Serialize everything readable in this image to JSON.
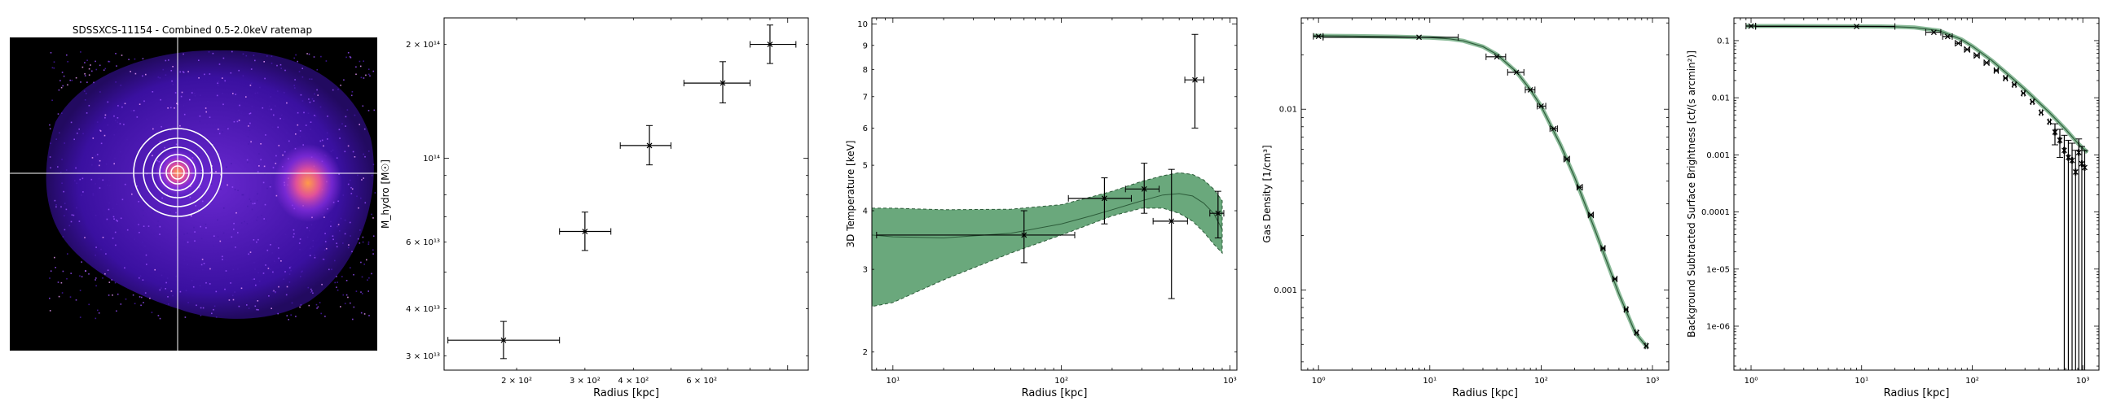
{
  "image_panel": {
    "title": "SDSSXCS-11154 - Combined 0.5-2.0keV ratemap",
    "colors": {
      "background": "#000000",
      "emission_low": "#3a10a0",
      "emission_mid": "#8a2fe0",
      "emission_high": "#ff9a4a",
      "crosshair": "#ffffff"
    }
  },
  "chart_data": [
    {
      "type": "scatter",
      "title": "",
      "xlabel": "Radius [kpc]",
      "ylabel": "M_hydro [M☉]",
      "xscale": "log",
      "yscale": "log",
      "xlim": [
        130,
        1130
      ],
      "ylim": [
        27500000000000.0,
        235000000000000.0
      ],
      "xticks": [
        {
          "v": 200,
          "label": "2 × 10²"
        },
        {
          "v": 300,
          "label": "3 × 10²"
        },
        {
          "v": 400,
          "label": "4 × 10²"
        },
        {
          "v": 600,
          "label": "6 × 10²"
        }
      ],
      "yticks": [
        {
          "v": 30000000000000.0,
          "label": "3 × 10¹³"
        },
        {
          "v": 40000000000000.0,
          "label": "4 × 10¹³"
        },
        {
          "v": 60000000000000.0,
          "label": "6 × 10¹³"
        },
        {
          "v": 100000000000000.0,
          "label": "10¹⁴"
        },
        {
          "v": 200000000000000.0,
          "label": "2 × 10¹⁴"
        }
      ],
      "points": [
        {
          "x": 185,
          "y": 33000000000000.0,
          "xlo": 133,
          "xhi": 258,
          "ylo": 29500000000000.0,
          "yhi": 37000000000000.0
        },
        {
          "x": 300,
          "y": 64000000000000.0,
          "xlo": 258,
          "xhi": 350,
          "ylo": 57000000000000.0,
          "yhi": 72000000000000.0
        },
        {
          "x": 440,
          "y": 108000000000000.0,
          "xlo": 370,
          "xhi": 500,
          "ylo": 96000000000000.0,
          "yhi": 122000000000000.0
        },
        {
          "x": 680,
          "y": 158000000000000.0,
          "xlo": 540,
          "xhi": 800,
          "ylo": 140000000000000.0,
          "yhi": 180000000000000.0
        },
        {
          "x": 900,
          "y": 200000000000000.0,
          "xlo": 800,
          "xhi": 1050,
          "ylo": 178000000000000.0,
          "yhi": 225000000000000.0
        }
      ],
      "colors": {
        "points": "#000000"
      }
    },
    {
      "type": "line",
      "title": "",
      "xlabel": "Radius [kpc]",
      "ylabel": "3D Temperature [keV]",
      "xscale": "log",
      "yscale": "log",
      "xlim": [
        7.5,
        1100
      ],
      "ylim": [
        1.83,
        10.3
      ],
      "xticks": [
        {
          "v": 10,
          "label": "10¹"
        },
        {
          "v": 100,
          "label": "10²"
        },
        {
          "v": 1000,
          "label": "10³"
        }
      ],
      "yticks": [
        {
          "v": 2,
          "label": "2"
        },
        {
          "v": 3,
          "label": "3"
        },
        {
          "v": 4,
          "label": "4"
        },
        {
          "v": 5,
          "label": "5"
        },
        {
          "v": 6,
          "label": "6"
        },
        {
          "v": 7,
          "label": "7"
        },
        {
          "v": 8,
          "label": "8"
        },
        {
          "v": 9,
          "label": "9"
        },
        {
          "v": 10,
          "label": "10"
        }
      ],
      "model": {
        "x": [
          7.5,
          10,
          20,
          50,
          100,
          150,
          200,
          300,
          400,
          500,
          600,
          700,
          800,
          900
        ],
        "median": [
          3.55,
          3.52,
          3.5,
          3.58,
          3.75,
          3.9,
          4.02,
          4.2,
          4.32,
          4.35,
          4.3,
          4.15,
          3.95,
          3.65
        ],
        "lower": [
          2.5,
          2.55,
          2.85,
          3.25,
          3.55,
          3.75,
          3.9,
          4.05,
          4.05,
          3.95,
          3.8,
          3.6,
          3.4,
          3.25
        ],
        "upper": [
          4.05,
          4.05,
          4.02,
          4.03,
          4.12,
          4.28,
          4.4,
          4.62,
          4.75,
          4.82,
          4.78,
          4.65,
          4.45,
          4.2
        ]
      },
      "points": [
        {
          "x": 60,
          "y": 3.55,
          "xlo": 8,
          "xhi": 120,
          "ylo": 3.1,
          "yhi": 4.0
        },
        {
          "x": 180,
          "y": 4.25,
          "xlo": 110,
          "xhi": 260,
          "ylo": 3.75,
          "yhi": 4.7
        },
        {
          "x": 310,
          "y": 4.45,
          "xlo": 240,
          "xhi": 380,
          "ylo": 3.95,
          "yhi": 5.05
        },
        {
          "x": 450,
          "y": 3.8,
          "xlo": 350,
          "xhi": 560,
          "ylo": 2.6,
          "yhi": 4.9
        },
        {
          "x": 620,
          "y": 7.6,
          "xlo": 540,
          "xhi": 700,
          "ylo": 6.0,
          "yhi": 9.5
        },
        {
          "x": 850,
          "y": 3.95,
          "xlo": 760,
          "xhi": 920,
          "ylo": 3.5,
          "yhi": 4.4
        }
      ],
      "colors": {
        "band": "#5a9e6e",
        "model": "#2d5c3a",
        "points": "#000000"
      }
    },
    {
      "type": "line",
      "title": "",
      "xlabel": "Radius [kpc]",
      "ylabel": "Gas Density [1/cm³]",
      "xscale": "log",
      "yscale": "log",
      "xlim": [
        0.7,
        1400
      ],
      "ylim": [
        0.00036,
        0.032
      ],
      "xticks": [
        {
          "v": 1,
          "label": "10⁰"
        },
        {
          "v": 10,
          "label": "10¹"
        },
        {
          "v": 100,
          "label": "10²"
        },
        {
          "v": 1000,
          "label": "10³"
        }
      ],
      "yticks": [
        {
          "v": 0.001,
          "label": "0.001"
        },
        {
          "v": 0.01,
          "label": "0.01"
        }
      ],
      "model": {
        "x": [
          0.9,
          2,
          5,
          10,
          15,
          20,
          30,
          40,
          60,
          80,
          100,
          150,
          200,
          300,
          500,
          700,
          900
        ],
        "y": [
          0.0255,
          0.0254,
          0.0252,
          0.0249,
          0.0245,
          0.0239,
          0.0222,
          0.0201,
          0.0161,
          0.0128,
          0.0104,
          0.0063,
          0.0042,
          0.0022,
          0.00095,
          0.00058,
          0.00048
        ]
      },
      "points": [
        {
          "x": 1.0,
          "y": 0.0253,
          "xlo": 0.9,
          "xhi": 1.1
        },
        {
          "x": 8,
          "y": 0.025,
          "xlo": 1.1,
          "xhi": 18
        },
        {
          "x": 40,
          "y": 0.0195,
          "xlo": 32,
          "xhi": 48
        },
        {
          "x": 60,
          "y": 0.016,
          "xlo": 50,
          "xhi": 70
        },
        {
          "x": 80,
          "y": 0.0128,
          "xlo": 72,
          "xhi": 88
        },
        {
          "x": 100,
          "y": 0.0104,
          "xlo": 92,
          "xhi": 110
        },
        {
          "x": 130,
          "y": 0.0078,
          "xlo": 120,
          "xhi": 140
        },
        {
          "x": 170,
          "y": 0.0053,
          "xlo": 160,
          "xhi": 180
        },
        {
          "x": 220,
          "y": 0.0037,
          "xlo": 210,
          "xhi": 235
        },
        {
          "x": 280,
          "y": 0.0026,
          "xlo": 265,
          "xhi": 295
        },
        {
          "x": 360,
          "y": 0.0017,
          "xlo": 345,
          "xhi": 375
        },
        {
          "x": 460,
          "y": 0.00115,
          "xlo": 440,
          "xhi": 480
        },
        {
          "x": 580,
          "y": 0.00078,
          "xlo": 560,
          "xhi": 600
        },
        {
          "x": 720,
          "y": 0.00058,
          "xlo": 700,
          "xhi": 740
        },
        {
          "x": 880,
          "y": 0.00049,
          "xlo": 860,
          "xhi": 900
        }
      ],
      "colors": {
        "band": "#5a9e6e",
        "model": "#2d5c3a",
        "points": "#000000"
      }
    },
    {
      "type": "line",
      "title": "",
      "xlabel": "Radius [kpc]",
      "ylabel": "Background Subtracted Surface Brightness [ct/(s arcmin²)]",
      "xscale": "log",
      "yscale": "log",
      "xlim": [
        0.7,
        1400
      ],
      "ylim": [
        1.7e-07,
        0.25
      ],
      "xticks": [
        {
          "v": 1,
          "label": "10⁰"
        },
        {
          "v": 10,
          "label": "10¹"
        },
        {
          "v": 100,
          "label": "10²"
        },
        {
          "v": 1000,
          "label": "10³"
        }
      ],
      "yticks": [
        {
          "v": 1e-06,
          "label": "1e-06"
        },
        {
          "v": 1e-05,
          "label": "1e-05"
        },
        {
          "v": 0.0001,
          "label": "0.0001"
        },
        {
          "v": 0.001,
          "label": "0.001"
        },
        {
          "v": 0.01,
          "label": "0.01"
        },
        {
          "v": 0.1,
          "label": "0.1"
        }
      ],
      "model": {
        "x": [
          0.9,
          2,
          5,
          10,
          15,
          20,
          30,
          50,
          80,
          100,
          150,
          200,
          300,
          500,
          700,
          900,
          1100
        ],
        "y": [
          0.18,
          0.18,
          0.179,
          0.178,
          0.177,
          0.175,
          0.17,
          0.15,
          0.105,
          0.08,
          0.045,
          0.028,
          0.014,
          0.0055,
          0.0028,
          0.0016,
          0.0011
        ]
      },
      "points": [
        {
          "x": 1.0,
          "y": 0.18,
          "xlo": 0.9,
          "xhi": 1.1
        },
        {
          "x": 9,
          "y": 0.177,
          "xlo": 1.1,
          "xhi": 20
        },
        {
          "x": 45,
          "y": 0.14,
          "xlo": 38,
          "xhi": 52
        },
        {
          "x": 60,
          "y": 0.118,
          "xlo": 54,
          "xhi": 66
        },
        {
          "x": 75,
          "y": 0.09,
          "xlo": 70,
          "xhi": 80
        },
        {
          "x": 90,
          "y": 0.07,
          "xlo": 85,
          "xhi": 95
        },
        {
          "x": 110,
          "y": 0.055,
          "xlo": 104,
          "xhi": 116
        },
        {
          "x": 135,
          "y": 0.041,
          "xlo": 128,
          "xhi": 142
        },
        {
          "x": 165,
          "y": 0.03,
          "xlo": 158,
          "xhi": 172
        },
        {
          "x": 200,
          "y": 0.022,
          "xlo": 193,
          "xhi": 207
        },
        {
          "x": 240,
          "y": 0.017,
          "xlo": 232,
          "xhi": 248
        },
        {
          "x": 290,
          "y": 0.012,
          "xlo": 282,
          "xhi": 298
        },
        {
          "x": 350,
          "y": 0.0085,
          "xlo": 340,
          "xhi": 360
        },
        {
          "x": 420,
          "y": 0.0055,
          "xlo": 410,
          "xhi": 430
        },
        {
          "x": 500,
          "y": 0.0038,
          "xlo": 490,
          "xhi": 510
        },
        {
          "x": 560,
          "y": 0.0025,
          "xlo": 550,
          "xhi": 570,
          "ylo": 0.0015,
          "yhi": 0.0035
        },
        {
          "x": 620,
          "y": 0.0018,
          "xlo": 610,
          "xhi": 630,
          "ylo": 0.0009,
          "yhi": 0.0028
        },
        {
          "x": 680,
          "y": 0.0012,
          "xlo": 670,
          "xhi": 690,
          "ylo": 1e-07,
          "yhi": 0.0022
        },
        {
          "x": 740,
          "y": 0.0009,
          "xlo": 730,
          "xhi": 750,
          "ylo": 1e-07,
          "yhi": 0.0018
        },
        {
          "x": 800,
          "y": 0.0008,
          "xlo": 790,
          "xhi": 810,
          "ylo": 1e-07,
          "yhi": 0.0016
        },
        {
          "x": 860,
          "y": 0.0005,
          "xlo": 850,
          "xhi": 870,
          "ylo": 1e-07,
          "yhi": 0.0012
        },
        {
          "x": 920,
          "y": 0.0011,
          "xlo": 910,
          "xhi": 930,
          "ylo": 1e-07,
          "yhi": 0.0019
        },
        {
          "x": 980,
          "y": 0.0007,
          "xlo": 970,
          "xhi": 990,
          "ylo": 1e-07,
          "yhi": 0.0014
        },
        {
          "x": 1040,
          "y": 0.0006,
          "xlo": 1030,
          "xhi": 1050,
          "ylo": 1e-07,
          "yhi": 0.0012
        }
      ],
      "colors": {
        "band": "#5a9e6e",
        "model": "#2d5c3a",
        "points": "#000000"
      }
    }
  ]
}
